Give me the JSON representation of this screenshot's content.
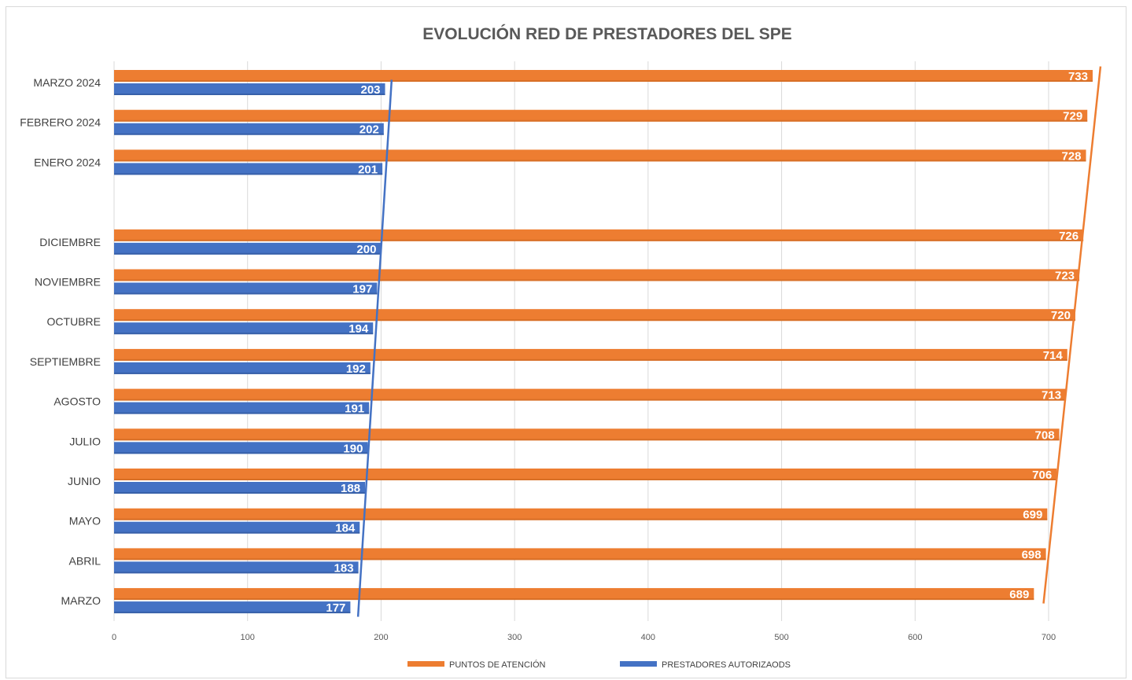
{
  "chart_data": {
    "type": "bar",
    "orientation": "horizontal",
    "title": "EVOLUCIÓN RED DE PRESTADORES DEL SPE",
    "categories": [
      "MARZO 2024",
      "FEBRERO 2024",
      "ENERO 2024",
      "",
      "DICIEMBRE",
      "NOVIEMBRE",
      "OCTUBRE",
      "SEPTIEMBRE",
      "AGOSTO",
      "JULIO",
      "JUNIO",
      "MAYO",
      "ABRIL",
      "MARZO"
    ],
    "series": [
      {
        "name": "PUNTOS DE ATENCIÓN",
        "color": "#ED7D31",
        "values": [
          733,
          729,
          728,
          null,
          726,
          723,
          720,
          714,
          713,
          708,
          706,
          699,
          698,
          689
        ]
      },
      {
        "name": "PRESTADORES AUTORIZAODS",
        "color": "#4472C4",
        "values": [
          203,
          202,
          201,
          null,
          200,
          197,
          194,
          192,
          191,
          190,
          188,
          184,
          183,
          177
        ]
      }
    ],
    "xticks": [
      "0",
      "100",
      "200",
      "300",
      "400",
      "500",
      "600",
      "700"
    ],
    "xlim": [
      0,
      750
    ],
    "grid": true,
    "trendlines": true,
    "data_labels": true,
    "legend": "bottom"
  }
}
